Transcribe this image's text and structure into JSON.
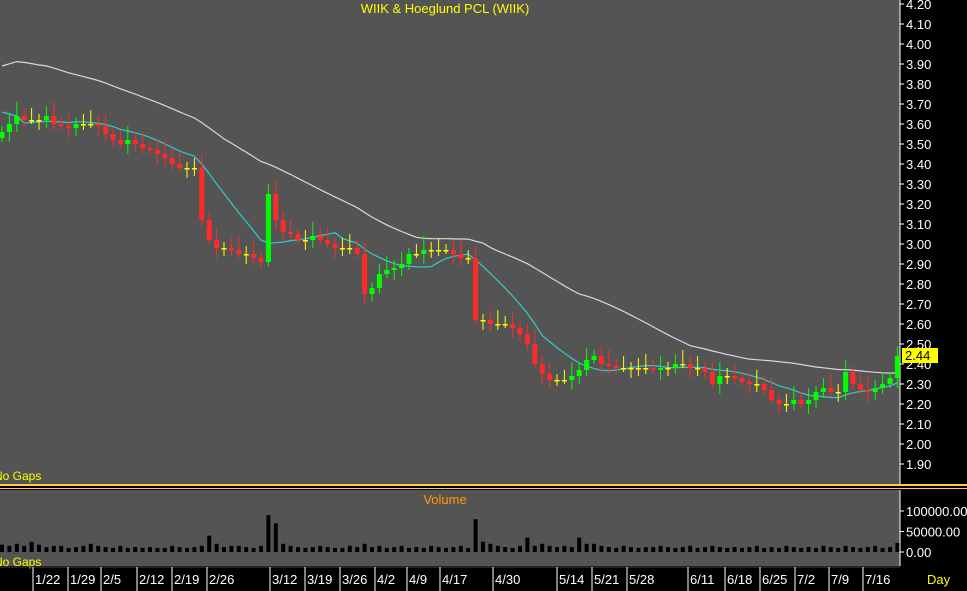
{
  "colors": {
    "panel": "#545454",
    "up": "#00ff00",
    "down": "#ff2a2a",
    "doji": "#ffff00",
    "ma_fast": "#33cccc",
    "ma_slow": "#d9d9d9",
    "separator": "#ffcc33",
    "volume_bar": "#000000",
    "last_price_bg": "#ffff00"
  },
  "chart_data": [
    {
      "type": "candlestick",
      "title": "WIIK & Hoeglund PCL (WIIK)",
      "ylim": [
        1.8,
        4.2
      ],
      "yticks": [
        "4.20",
        "4.10",
        "4.00",
        "3.90",
        "3.80",
        "3.70",
        "3.60",
        "3.50",
        "3.40",
        "3.30",
        "3.20",
        "3.10",
        "3.00",
        "2.90",
        "2.80",
        "2.70",
        "2.60",
        "2.50",
        "2.40",
        "2.30",
        "2.20",
        "2.10",
        "2.00",
        "1.90"
      ],
      "x_labels": [
        "1/22",
        "1/29",
        "2/5",
        "2/12",
        "2/19",
        "2/26",
        "3/12",
        "3/19",
        "3/26",
        "4/2",
        "4/9",
        "4/17",
        "4/30",
        "5/14",
        "5/21",
        "5/28",
        "6/11",
        "6/18",
        "6/25",
        "7/2",
        "7/9",
        "7/16"
      ],
      "x_unit": "Day",
      "annotation": "No Gaps",
      "last_price": "2.44",
      "moving_averages": [
        "fast",
        "slow"
      ],
      "close": [
        3.56,
        3.6,
        3.64,
        3.62,
        3.62,
        3.62,
        3.64,
        3.6,
        3.59,
        3.58,
        3.6,
        3.6,
        3.6,
        3.59,
        3.55,
        3.52,
        3.5,
        3.52,
        3.5,
        3.48,
        3.47,
        3.45,
        3.43,
        3.4,
        3.38,
        3.38,
        3.38,
        3.12,
        3.02,
        2.98,
        2.98,
        2.97,
        2.95,
        2.95,
        2.93,
        2.91,
        3.25,
        3.12,
        3.06,
        3.05,
        3.02,
        3.02,
        3.04,
        3.02,
        3.0,
        2.98,
        2.98,
        2.98,
        2.95,
        2.75,
        2.78,
        2.85,
        2.87,
        2.88,
        2.9,
        2.95,
        2.95,
        2.97,
        2.97,
        2.97,
        2.97,
        2.95,
        2.93,
        2.93,
        2.62,
        2.62,
        2.6,
        2.6,
        2.6,
        2.58,
        2.55,
        2.5,
        2.4,
        2.35,
        2.32,
        2.32,
        2.32,
        2.34,
        2.37,
        2.42,
        2.44,
        2.4,
        2.39,
        2.38,
        2.38,
        2.38,
        2.38,
        2.38,
        2.37,
        2.38,
        2.38,
        2.4,
        2.4,
        2.38,
        2.38,
        2.36,
        2.3,
        2.34,
        2.34,
        2.33,
        2.31,
        2.3,
        2.3,
        2.27,
        2.22,
        2.2,
        2.2,
        2.22,
        2.2,
        2.22,
        2.26,
        2.28,
        2.26,
        2.26,
        2.36,
        2.3,
        2.27,
        2.26,
        2.28,
        2.3,
        2.33,
        2.44
      ],
      "volume": [
        18000,
        15000,
        20000,
        15000,
        25000,
        18000,
        12000,
        15000,
        15000,
        10000,
        12000,
        15000,
        20000,
        15000,
        12000,
        10000,
        15000,
        10000,
        12000,
        10000,
        12000,
        10000,
        10000,
        15000,
        12000,
        10000,
        12000,
        15000,
        40000,
        20000,
        12000,
        15000,
        15000,
        12000,
        10000,
        15000,
        90000,
        70000,
        20000,
        15000,
        12000,
        10000,
        12000,
        15000,
        12000,
        10000,
        10000,
        15000,
        12000,
        20000,
        12000,
        15000,
        10000,
        12000,
        15000,
        10000,
        12000,
        10000,
        15000,
        12000,
        10000,
        12000,
        15000,
        10000,
        80000,
        25000,
        20000,
        15000,
        12000,
        10000,
        15000,
        35000,
        15000,
        20000,
        15000,
        12000,
        15000,
        12000,
        35000,
        20000,
        20000,
        15000,
        12000,
        10000,
        15000,
        12000,
        10000,
        12000,
        12000,
        15000,
        12000,
        10000,
        12000,
        15000,
        10000,
        12000,
        15000,
        12000,
        10000,
        12000,
        10000,
        12000,
        15000,
        10000,
        12000,
        10000,
        15000,
        12000,
        10000,
        12000,
        10000,
        15000,
        12000,
        10000,
        15000,
        12000,
        10000,
        12000,
        15000,
        10000,
        12000,
        22000
      ],
      "volume_title": "Volume",
      "volume_ylim": [
        0,
        100000
      ],
      "volume_yticks": [
        "100000.00",
        "50000.00",
        "0.00"
      ]
    }
  ]
}
